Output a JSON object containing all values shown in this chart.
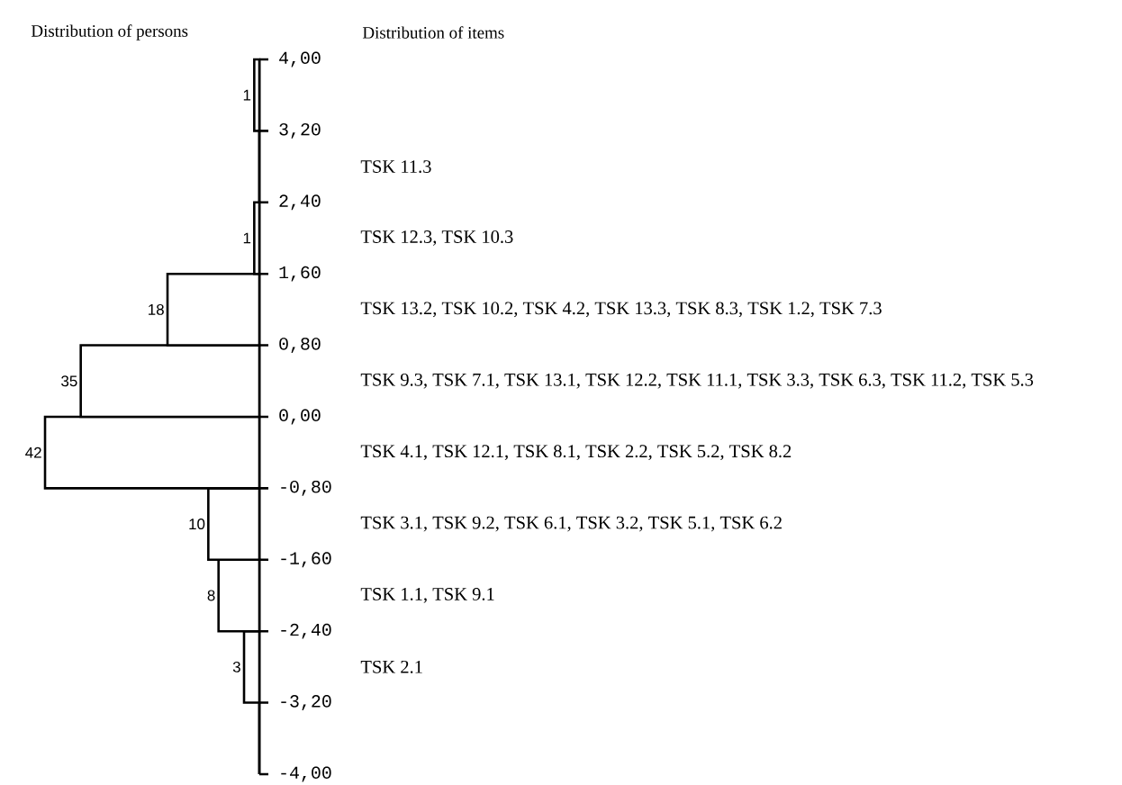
{
  "chart_data": {
    "type": "bar",
    "orientation": "horizontal",
    "title": "Distribution of persons",
    "x": [
      -3.6,
      -2.8,
      -2.0,
      -1.2,
      -0.4,
      0.4,
      1.2,
      2.0,
      2.8,
      3.6
    ],
    "values": [
      0,
      3,
      8,
      10,
      42,
      35,
      18,
      1,
      0,
      1
    ],
    "value_labels": [
      null,
      "3",
      "8",
      "10",
      "42",
      "35",
      "18",
      "1",
      null,
      "1"
    ],
    "color": "#000000",
    "ylim": [
      -4,
      4
    ],
    "yticks": [
      {
        "value": -4,
        "label": "-4,00"
      },
      {
        "value": -3.2,
        "label": "-3,20"
      },
      {
        "value": -2.4,
        "label": "-2,40"
      },
      {
        "value": -1.6,
        "label": "-1,60"
      },
      {
        "value": -0.8,
        "label": "-0,80"
      },
      {
        "value": 0,
        "label": "0,00"
      },
      {
        "value": 0.8,
        "label": "0,80"
      },
      {
        "value": 1.6,
        "label": "1,60"
      },
      {
        "value": 2.4,
        "label": "2,40"
      },
      {
        "value": 3.2,
        "label": "3,20"
      },
      {
        "value": 4,
        "label": "4,00"
      }
    ],
    "tick_labels": "y",
    "annotations": [
      "Distribution of items",
      "TSK 11.3",
      "TSK 12.3, TSK 10.3",
      "TSK 13.2, TSK 10.2, TSK 4.2, TSK 13.3, TSK 8.3, TSK 1.2, TSK 7.3",
      "TSK 9.3, TSK 7.1, TSK 13.1, TSK 12.2, TSK 11.1, TSK 3.3, TSK 6.3, TSK 11.2, TSK 5.3",
      "TSK 4.1, TSK 12.1, TSK 8.1, TSK 2.2, TSK 5.2, TSK 8.2",
      "TSK 3.1, TSK 9.2, TSK 6.1, TSK 3.2, TSK 5.1, TSK 6.2",
      "TSK 1.1, TSK 9.1",
      "TSK 2.1"
    ]
  }
}
